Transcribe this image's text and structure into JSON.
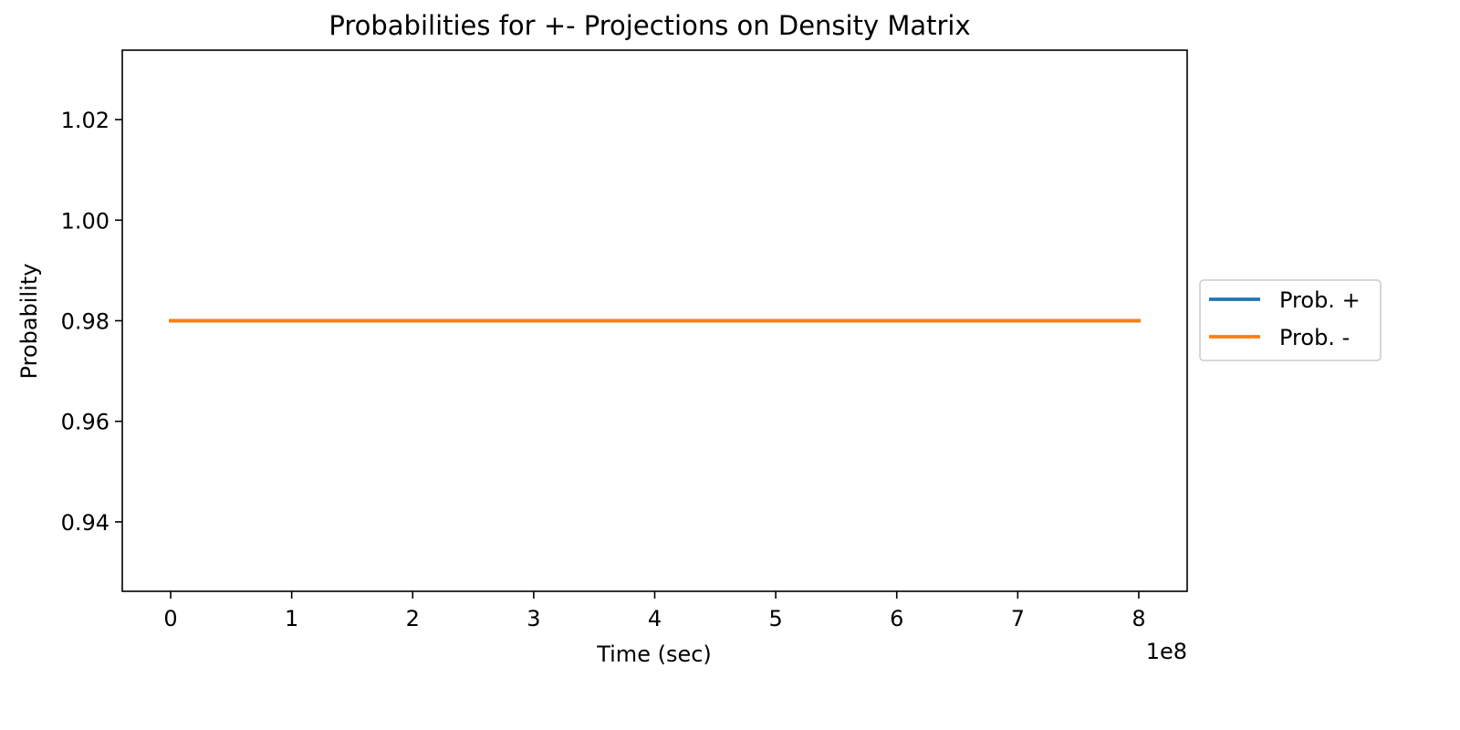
{
  "chart_data": {
    "type": "line",
    "title": "Probabilities for +- Projections on Density Matrix",
    "xlabel": "Time (sec)",
    "ylabel": "Probability",
    "x_offset_label": "1e8",
    "xlim": [
      -0.4,
      8.4
    ],
    "ylim": [
      0.9262,
      1.0338
    ],
    "xticks": [
      0,
      1,
      2,
      3,
      4,
      5,
      6,
      7,
      8
    ],
    "xtick_labels": [
      "0",
      "1",
      "2",
      "3",
      "4",
      "5",
      "6",
      "7",
      "8"
    ],
    "yticks": [
      0.94,
      0.96,
      0.98,
      1.0,
      1.02
    ],
    "ytick_labels": [
      "0.94",
      "0.96",
      "0.98",
      "1.00",
      "1.02"
    ],
    "grid": false,
    "legend_position": "center-right-outside",
    "x": [
      0,
      8
    ],
    "series": [
      {
        "name": "Prob. +",
        "values": [
          0.98,
          0.98
        ],
        "color": "#1f77b4"
      },
      {
        "name": "Prob. -",
        "values": [
          0.98,
          0.98
        ],
        "color": "#ff7f0e"
      }
    ]
  }
}
